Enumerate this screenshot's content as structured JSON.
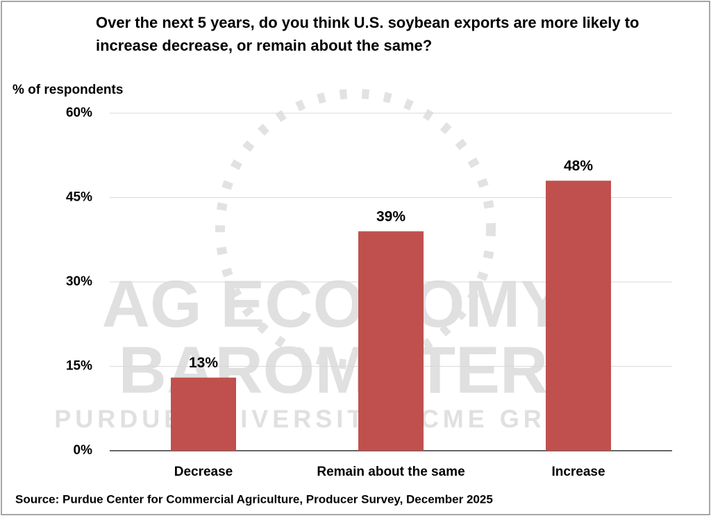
{
  "chart_data": {
    "type": "bar",
    "title": "Over the next 5 years, do you think U.S. soybean exports are more likely to increase decrease, or remain about the same?",
    "y_label": "% of respondents",
    "categories": [
      "Decrease",
      "Remain about the same",
      "Increase"
    ],
    "values": [
      13,
      39,
      48
    ],
    "value_labels": [
      "13%",
      "39%",
      "48%"
    ],
    "color": "#c0504d",
    "ylim": [
      0,
      60
    ],
    "yticks": [
      {
        "value": 0,
        "label": "0%"
      },
      {
        "value": 15,
        "label": "15%"
      },
      {
        "value": 30,
        "label": "30%"
      },
      {
        "value": 45,
        "label": "45%"
      },
      {
        "value": 60,
        "label": "60%"
      }
    ],
    "grid": true,
    "watermark": [
      "AG ECONOMY",
      "BAROMETER",
      "PURDUE UNIVERSITY | CME GROUP"
    ],
    "source": "Source: Purdue Center for Commercial Agriculture, Producer Survey, December 2025"
  }
}
